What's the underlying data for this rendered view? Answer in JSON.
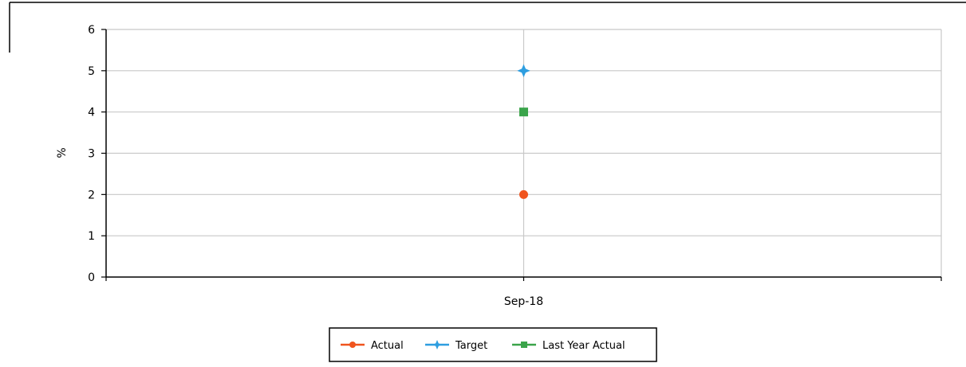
{
  "chart_data": {
    "type": "line",
    "title": "",
    "xlabel": "",
    "ylabel": "%",
    "categories": [
      "Sep-18"
    ],
    "ylim": [
      0,
      6
    ],
    "yticks": [
      0,
      1,
      2,
      3,
      4,
      5,
      6
    ],
    "grid": true,
    "legend_position": "bottom",
    "series": [
      {
        "name": "Actual",
        "values": [
          2
        ],
        "color": "#f0541e",
        "marker": "circle"
      },
      {
        "name": "Target",
        "values": [
          5
        ],
        "color": "#2e9ee0",
        "marker": "star"
      },
      {
        "name": "Last Year Actual",
        "values": [
          4
        ],
        "color": "#3aa44a",
        "marker": "square"
      }
    ]
  }
}
